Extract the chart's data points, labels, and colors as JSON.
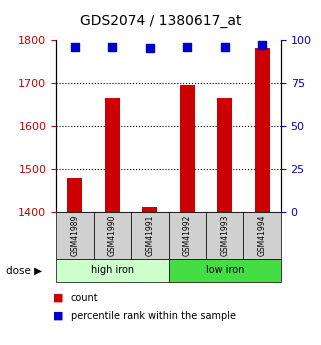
{
  "title": "GDS2074 / 1380617_at",
  "samples": [
    "GSM41989",
    "GSM41990",
    "GSM41991",
    "GSM41992",
    "GSM41993",
    "GSM41994"
  ],
  "bar_values": [
    1480,
    1665,
    1413,
    1695,
    1665,
    1780
  ],
  "percentile_values": [
    96,
    96,
    95,
    96,
    96,
    97
  ],
  "ylim_left": [
    1400,
    1800
  ],
  "ylim_right": [
    0,
    100
  ],
  "yticks_left": [
    1400,
    1500,
    1600,
    1700,
    1800
  ],
  "yticks_right": [
    0,
    25,
    50,
    75,
    100
  ],
  "bar_color": "#cc0000",
  "dot_color": "#0000cc",
  "group1_label": "high iron",
  "group2_label": "low iron",
  "group1_bg": "#ccffcc",
  "group2_bg": "#44dd44",
  "sample_box_bg": "#d0d0d0",
  "legend_count": "count",
  "legend_percentile": "percentile rank within the sample",
  "left_tick_color": "#cc0000",
  "right_tick_color": "#0000cc",
  "bar_width": 0.4,
  "dot_size": 40
}
